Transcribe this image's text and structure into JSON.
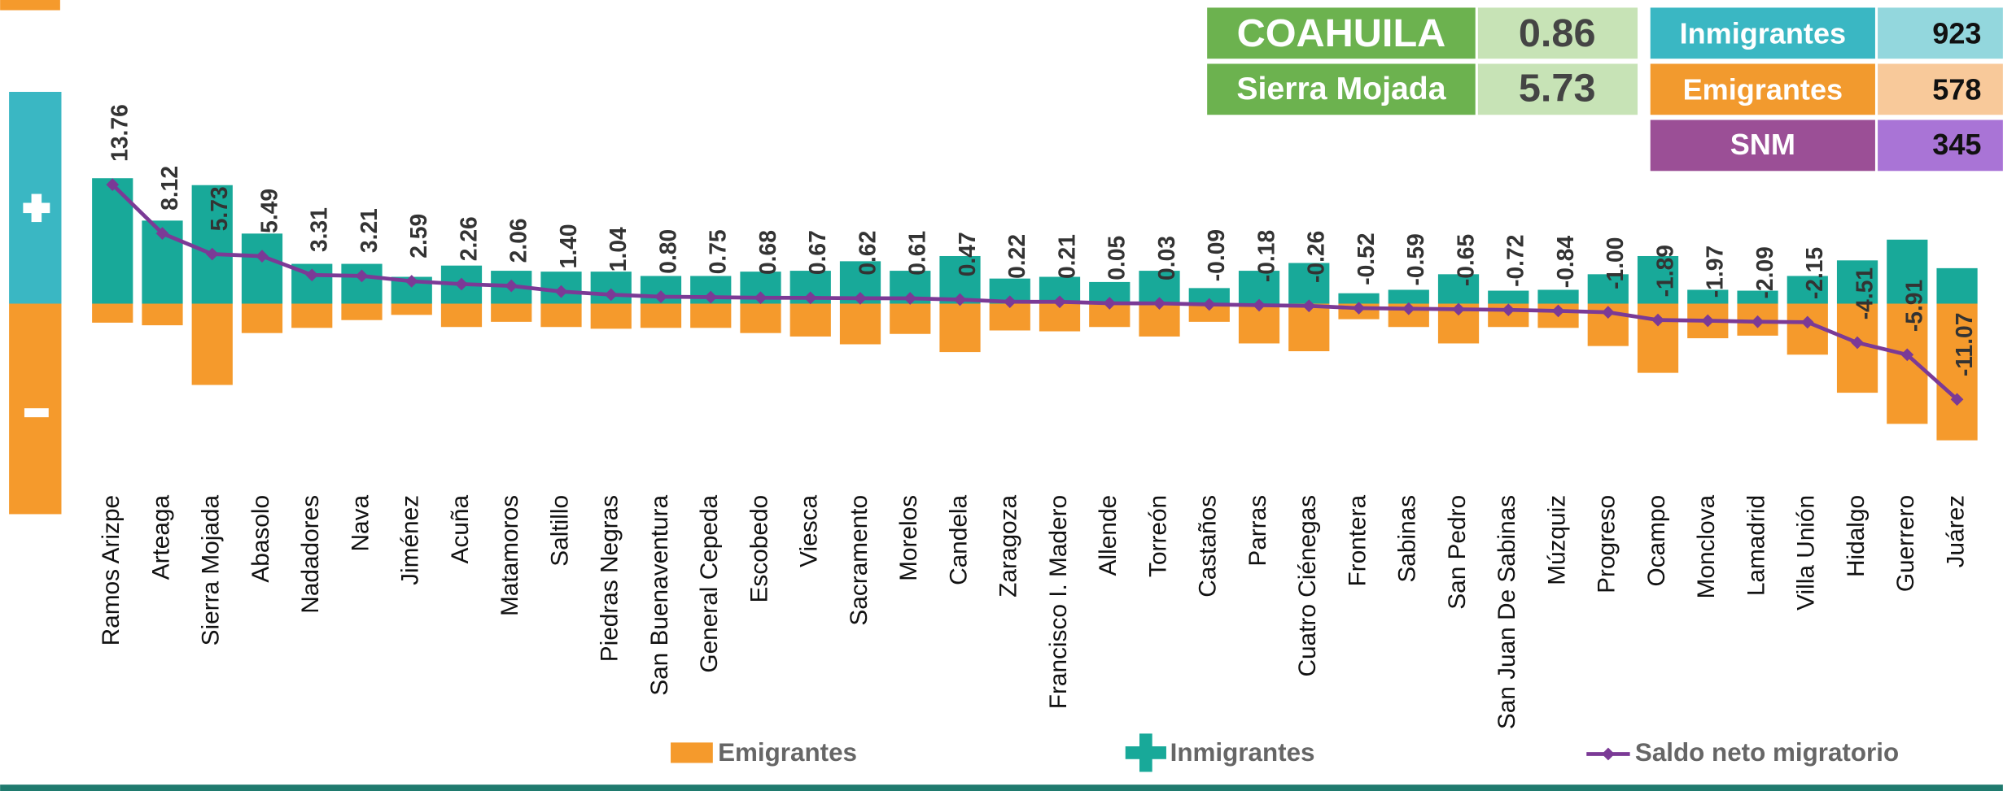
{
  "summary": {
    "state": {
      "name": "COAHUILA",
      "value": "0.86"
    },
    "selected": {
      "name": "Sierra Mojada",
      "value": "5.73"
    },
    "immigrants": {
      "name": "Inmigrantes",
      "value": "923"
    },
    "emigrants": {
      "name": "Emigrantes",
      "value": "578"
    },
    "net": {
      "name": "SNM",
      "value": "345"
    }
  },
  "chart_data": {
    "type": "bar",
    "categories": [
      "Ramos Arizpe",
      "Arteaga",
      "Sierra Mojada",
      "Abasolo",
      "Nadadores",
      "Nava",
      "Jiménez",
      "Acuña",
      "Matamoros",
      "Saltillo",
      "Piedras Negras",
      "San Buenaventura",
      "General Cepeda",
      "Escobedo",
      "Viesca",
      "Sacramento",
      "Morelos",
      "Candela",
      "Zaragoza",
      "Francisco I. Madero",
      "Allende",
      "Torreón",
      "Castaños",
      "Parras",
      "Cuatro Ciénegas",
      "Frontera",
      "Sabinas",
      "San Pedro",
      "San Juan De Sabinas",
      "Múzquiz",
      "Progreso",
      "Ocampo",
      "Monclova",
      "Lamadrid",
      "Villa Unión",
      "Hidalgo",
      "Guerrero",
      "Juárez"
    ],
    "series": [
      {
        "name": "Emigrantes",
        "color": "#f59a2c",
        "values": [
          -2.2,
          -2.5,
          -9.4,
          -3.4,
          -2.8,
          -1.9,
          -1.3,
          -2.7,
          -2.1,
          -2.7,
          -2.9,
          -2.8,
          -2.8,
          -3.4,
          -3.8,
          -4.7,
          -3.5,
          -5.6,
          -3.1,
          -3.2,
          -2.7,
          -3.8,
          -2.1,
          -4.6,
          -5.5,
          -1.8,
          -2.7,
          -4.6,
          -2.7,
          -2.8,
          -4.9,
          -8.0,
          -4.0,
          -3.7,
          -5.9,
          -10.3,
          -13.9,
          -15.8
        ]
      },
      {
        "name": "Inmigrantes",
        "color": "#18a999",
        "values": [
          14.5,
          9.6,
          13.7,
          8.1,
          4.6,
          4.6,
          3.1,
          4.4,
          3.8,
          3.7,
          3.7,
          3.2,
          3.2,
          3.7,
          3.8,
          4.9,
          3.8,
          5.5,
          2.9,
          3.1,
          2.5,
          3.8,
          1.8,
          3.8,
          4.7,
          1.2,
          1.6,
          3.4,
          1.5,
          1.6,
          3.4,
          5.5,
          1.6,
          1.5,
          3.2,
          5.0,
          7.4,
          4.1
        ]
      },
      {
        "name": "Saldo neto migratorio",
        "color": "#7b3a96",
        "type": "line",
        "values": [
          13.76,
          8.12,
          5.73,
          5.49,
          3.31,
          3.21,
          2.59,
          2.26,
          2.06,
          1.4,
          1.04,
          0.8,
          0.75,
          0.68,
          0.67,
          0.62,
          0.61,
          0.47,
          0.22,
          0.21,
          0.05,
          0.03,
          -0.09,
          -0.18,
          -0.26,
          -0.52,
          -0.59,
          -0.65,
          -0.72,
          -0.84,
          -1.0,
          -1.89,
          -1.97,
          -2.09,
          -2.15,
          -4.51,
          -5.91,
          -11.07
        ],
        "value_labels": [
          "13.76",
          "8.12",
          "5.73",
          "5.49",
          "3.31",
          "3.21",
          "2.59",
          "2.26",
          "2.06",
          "1.40",
          "1.04",
          "0.80",
          "0.75",
          "0.68",
          "0.67",
          "0.62",
          "0.61",
          "0.47",
          "0.22",
          "0.21",
          "0.05",
          "0.03",
          "-0.09",
          "-0.18",
          "-0.26",
          "-0.52",
          "-0.59",
          "-0.65",
          "-0.72",
          "-0.84",
          "-1.00",
          "-1.89",
          "-1.97",
          "-2.09",
          "-2.15",
          "-4.51",
          "-5.91",
          "-11.07"
        ]
      }
    ],
    "ylim": [
      -20,
      20
    ]
  }
}
